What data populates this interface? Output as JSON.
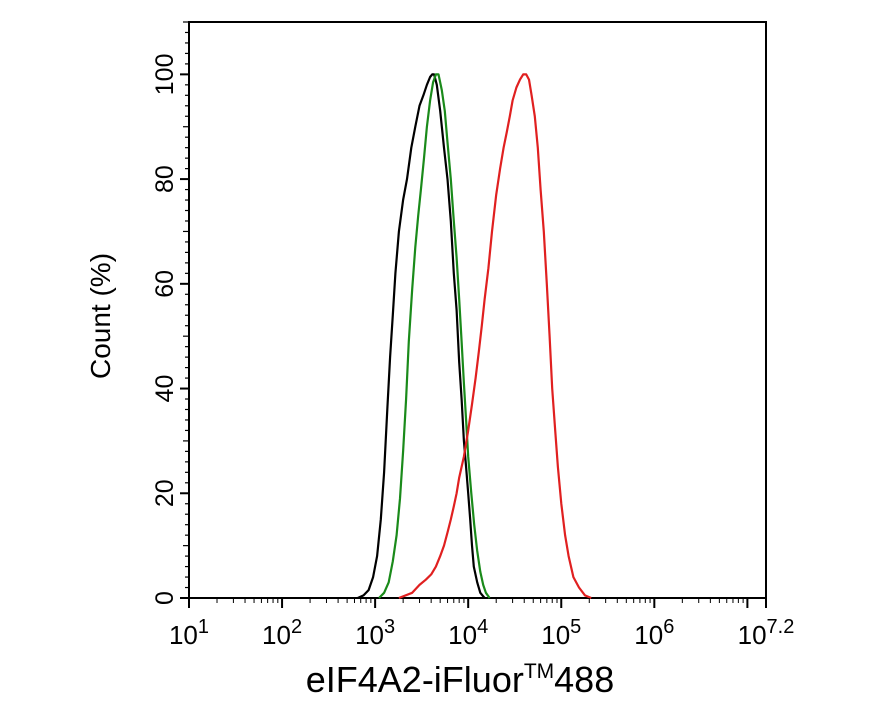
{
  "chart_data": {
    "type": "line",
    "title": "",
    "xlabel": {
      "main": "eIF4A2-iFluor",
      "superscript": "TM",
      "suffix": "488"
    },
    "ylabel": "Count  (%)",
    "x_scale": "log10",
    "xlim": [
      10,
      15848932
    ],
    "ylim": [
      0,
      110
    ],
    "x_ticks": [
      {
        "base": "10",
        "exp": "1",
        "value": 10
      },
      {
        "base": "10",
        "exp": "2",
        "value": 100
      },
      {
        "base": "10",
        "exp": "3",
        "value": 1000
      },
      {
        "base": "10",
        "exp": "4",
        "value": 10000
      },
      {
        "base": "10",
        "exp": "5",
        "value": 100000
      },
      {
        "base": "10",
        "exp": "6",
        "value": 1000000
      },
      {
        "base": "10",
        "exp": "7.2",
        "value": 15848932
      }
    ],
    "y_ticks": [
      "0",
      "20",
      "40",
      "60",
      "80",
      "100"
    ],
    "grid": false,
    "legend": "none",
    "series": [
      {
        "color": "#000000",
        "points": [
          [
            650,
            0
          ],
          [
            750,
            0.5
          ],
          [
            850,
            1.5
          ],
          [
            950,
            4
          ],
          [
            1050,
            8
          ],
          [
            1150,
            15
          ],
          [
            1250,
            24
          ],
          [
            1350,
            36
          ],
          [
            1450,
            46
          ],
          [
            1550,
            54
          ],
          [
            1650,
            62
          ],
          [
            1800,
            70
          ],
          [
            2000,
            76
          ],
          [
            2200,
            80
          ],
          [
            2450,
            86
          ],
          [
            2700,
            90
          ],
          [
            3000,
            94
          ],
          [
            3300,
            96
          ],
          [
            3600,
            98
          ],
          [
            3900,
            99.5
          ],
          [
            4100,
            100
          ],
          [
            4300,
            100
          ],
          [
            4600,
            98
          ],
          [
            5000,
            93
          ],
          [
            5500,
            86
          ],
          [
            6000,
            80
          ],
          [
            6500,
            72
          ],
          [
            7000,
            62
          ],
          [
            7500,
            55
          ],
          [
            8000,
            45
          ],
          [
            8500,
            38
          ],
          [
            9000,
            30
          ],
          [
            9500,
            25
          ],
          [
            10000,
            20
          ],
          [
            10500,
            15
          ],
          [
            11000,
            10
          ],
          [
            11500,
            6
          ],
          [
            12500,
            3
          ],
          [
            13500,
            1
          ],
          [
            15000,
            0
          ]
        ]
      },
      {
        "color": "#1a8a1a",
        "points": [
          [
            1100,
            0
          ],
          [
            1250,
            1
          ],
          [
            1400,
            3
          ],
          [
            1550,
            7
          ],
          [
            1700,
            12
          ],
          [
            1850,
            19
          ],
          [
            2000,
            28
          ],
          [
            2150,
            38
          ],
          [
            2300,
            49
          ],
          [
            2500,
            59
          ],
          [
            2700,
            67
          ],
          [
            2900,
            73
          ],
          [
            3100,
            78
          ],
          [
            3350,
            84
          ],
          [
            3600,
            90
          ],
          [
            3900,
            95
          ],
          [
            4200,
            98.5
          ],
          [
            4500,
            100
          ],
          [
            4800,
            100
          ],
          [
            5200,
            97
          ],
          [
            5600,
            93
          ],
          [
            6000,
            87
          ],
          [
            6500,
            80
          ],
          [
            7000,
            72
          ],
          [
            7500,
            65
          ],
          [
            8000,
            57
          ],
          [
            8500,
            49
          ],
          [
            9000,
            41
          ],
          [
            9500,
            34
          ],
          [
            10000,
            27
          ],
          [
            10800,
            20
          ],
          [
            11600,
            14
          ],
          [
            12500,
            9
          ],
          [
            13500,
            5
          ],
          [
            14500,
            2.5
          ],
          [
            15500,
            1
          ],
          [
            17000,
            0
          ]
        ]
      },
      {
        "color": "#e02020",
        "points": [
          [
            1800,
            0
          ],
          [
            2500,
            1
          ],
          [
            3000,
            2.5
          ],
          [
            3500,
            3.5
          ],
          [
            4000,
            4.5
          ],
          [
            4500,
            6
          ],
          [
            5000,
            8
          ],
          [
            5500,
            10
          ],
          [
            6000,
            12.5
          ],
          [
            6500,
            15
          ],
          [
            7000,
            17.5
          ],
          [
            7500,
            20
          ],
          [
            8000,
            23
          ],
          [
            9000,
            27
          ],
          [
            10000,
            32
          ],
          [
            11000,
            37
          ],
          [
            12000,
            42
          ],
          [
            13000,
            47
          ],
          [
            14000,
            52
          ],
          [
            15000,
            57
          ],
          [
            16500,
            63
          ],
          [
            18000,
            70
          ],
          [
            20000,
            77
          ],
          [
            22000,
            82
          ],
          [
            24000,
            86
          ],
          [
            26000,
            89
          ],
          [
            28000,
            92
          ],
          [
            30000,
            95
          ],
          [
            33000,
            97.5
          ],
          [
            36000,
            99
          ],
          [
            39000,
            100
          ],
          [
            42000,
            100
          ],
          [
            45000,
            99
          ],
          [
            48000,
            96
          ],
          [
            52000,
            92
          ],
          [
            56000,
            86
          ],
          [
            60000,
            78
          ],
          [
            65000,
            70
          ],
          [
            70000,
            60
          ],
          [
            75000,
            50
          ],
          [
            80000,
            40
          ],
          [
            86000,
            32
          ],
          [
            92000,
            25
          ],
          [
            100000,
            18
          ],
          [
            110000,
            12
          ],
          [
            120000,
            8
          ],
          [
            135000,
            4
          ],
          [
            155000,
            2
          ],
          [
            180000,
            0.5
          ],
          [
            210000,
            0
          ]
        ]
      }
    ]
  }
}
